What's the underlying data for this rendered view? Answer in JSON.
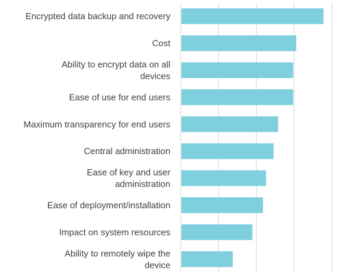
{
  "chart_data": {
    "type": "bar",
    "orientation": "horizontal",
    "title": "",
    "xlabel": "",
    "ylabel": "",
    "grid": true,
    "xlim": [
      0,
      1
    ],
    "bar_color": "#7fd0df",
    "grid_color": "#d9d9d9",
    "categories": [
      "Encrypted data backup and recovery",
      "Cost",
      "Ability to encrypt data on all devices",
      "Ease of use for end users",
      "Maximum transparency for end users",
      "Central administration",
      "Ease of key and user administration",
      "Ease of deployment/installation",
      "Impact on system resources",
      "Ability to remotely wipe the device"
    ],
    "values": [
      0.94,
      0.76,
      0.74,
      0.74,
      0.64,
      0.61,
      0.56,
      0.54,
      0.47,
      0.34
    ]
  }
}
